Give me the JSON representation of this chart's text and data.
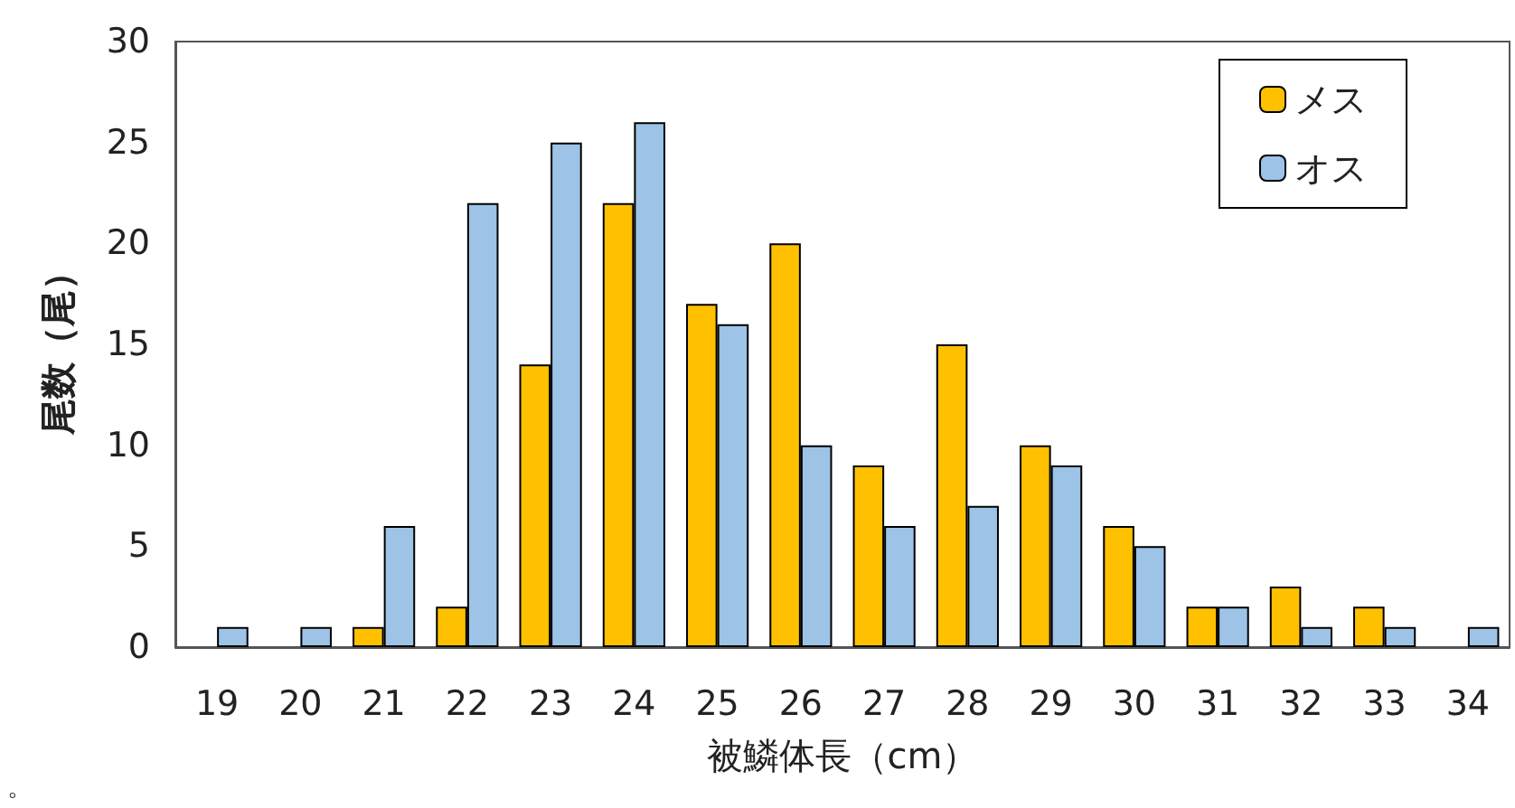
{
  "chart_data": {
    "type": "bar",
    "xlabel": "被鱗体長（cm）",
    "ylabel": "尾数（尾）",
    "categories": [
      "19",
      "20",
      "21",
      "22",
      "23",
      "24",
      "25",
      "26",
      "27",
      "28",
      "29",
      "30",
      "31",
      "32",
      "33",
      "34"
    ],
    "series": [
      {
        "name": "メス",
        "color": "#ffc000",
        "values": [
          0,
          0,
          1,
          2,
          14,
          22,
          17,
          20,
          9,
          15,
          10,
          6,
          2,
          3,
          2,
          0
        ]
      },
      {
        "name": "オス",
        "color": "#9dc3e6",
        "values": [
          1,
          1,
          6,
          22,
          25,
          26,
          16,
          10,
          6,
          7,
          9,
          5,
          2,
          1,
          1,
          1
        ]
      }
    ],
    "ylim": [
      0,
      30
    ],
    "yticks": [
      0,
      5,
      10,
      15,
      20,
      25,
      30
    ],
    "grid": false,
    "legend": "top right",
    "annotations": [
      "。"
    ]
  }
}
